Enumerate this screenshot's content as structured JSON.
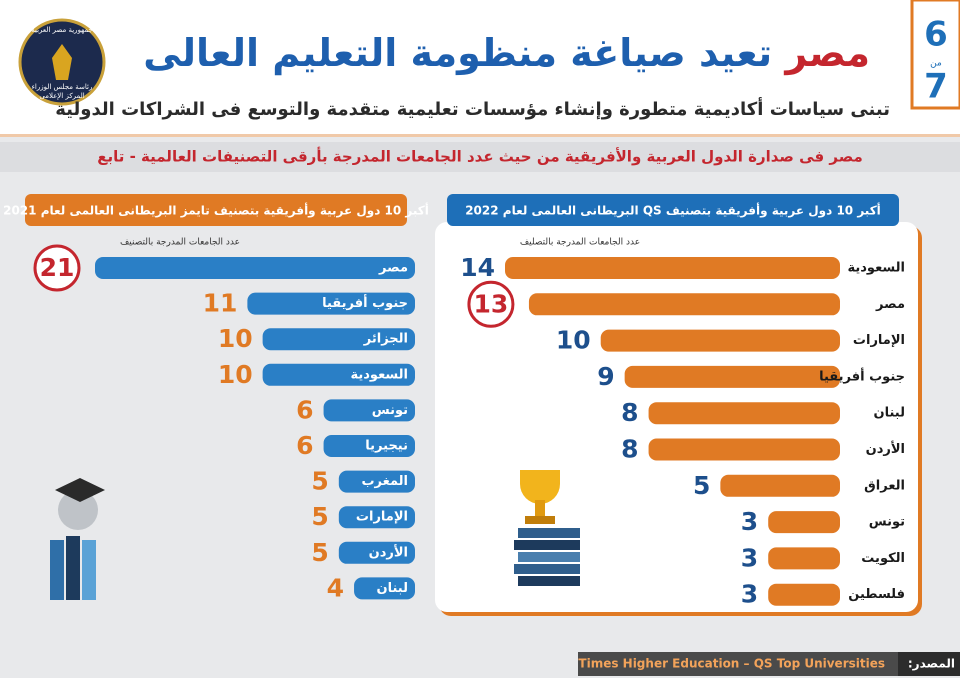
{
  "header": {
    "title_highlight": "مصر",
    "title": "تعيد صياغة منظومة التعليم العالى",
    "subtitle": "تبنى سياسات أكاديمية متطورة وإنشاء مؤسسات تعليمية متقدمة والتوسع فى الشراكات الدولية",
    "page": "6",
    "page_of": "من",
    "page_total": "7",
    "logo_lines": [
      "جمهورية مصر العربية",
      "رئاسة مجلس الوزراء",
      "المركز الإعلامى"
    ],
    "banner": "مصر فى صدارة الدول العربية والأفريقية من حيث عدد الجامعات المدرجة بأرقى التصنيفات العالمية - تابع"
  },
  "chart_data": [
    {
      "type": "bar",
      "title": "أكبر 10 دول عربية وأفريقية بتصنيف QS البريطانى العالمى لعام 2022",
      "axis_label": "عدد الجامعات المدرجة بالتصليف",
      "categories": [
        "السعودية",
        "مصر",
        "الإمارات",
        "جنوب أفريقيا",
        "لبنان",
        "الأردن",
        "العراق",
        "تونس",
        "الكويت",
        "فلسطين"
      ],
      "values": [
        14,
        13,
        10,
        9,
        8,
        8,
        5,
        3,
        3,
        3
      ],
      "xlim": [
        0,
        14
      ],
      "color": "#e07a24",
      "label_colors": [
        "#1d4f8c",
        "#c4262e",
        "#1d4f8c",
        "#1d4f8c",
        "#1d4f8c",
        "#1d4f8c",
        "#1d4f8c",
        "#1d4f8c",
        "#1d4f8c",
        "#1d4f8c"
      ],
      "highlight_color": "#c4262e"
    },
    {
      "type": "bar",
      "title": "أكبر 10 دول عربية وأفريقية بتصنيف تايمز البريطانى العالمى لعام 2021",
      "axis_label": "عدد الجامعات المدرجة بالتصنيف",
      "categories": [
        "مصر",
        "جنوب أفريقيا",
        "الجزائر",
        "السعودية",
        "تونس",
        "نيجيريا",
        "المغرب",
        "الإمارات",
        "الأردن",
        "لبنان"
      ],
      "values": [
        21,
        11,
        10,
        10,
        6,
        6,
        5,
        5,
        5,
        4
      ],
      "xlim": [
        0,
        21
      ],
      "color": "#2a7fc6",
      "label_colors": [
        "#c4262e",
        "#e07a24",
        "#e07a24",
        "#e07a24",
        "#e07a24",
        "#e07a24",
        "#e07a24",
        "#e07a24",
        "#e07a24",
        "#e07a24"
      ],
      "highlight_color": "#c4262e"
    }
  ],
  "footer": {
    "source_label": "المصدر:",
    "source": "Times Higher Education – QS Top Universities"
  }
}
